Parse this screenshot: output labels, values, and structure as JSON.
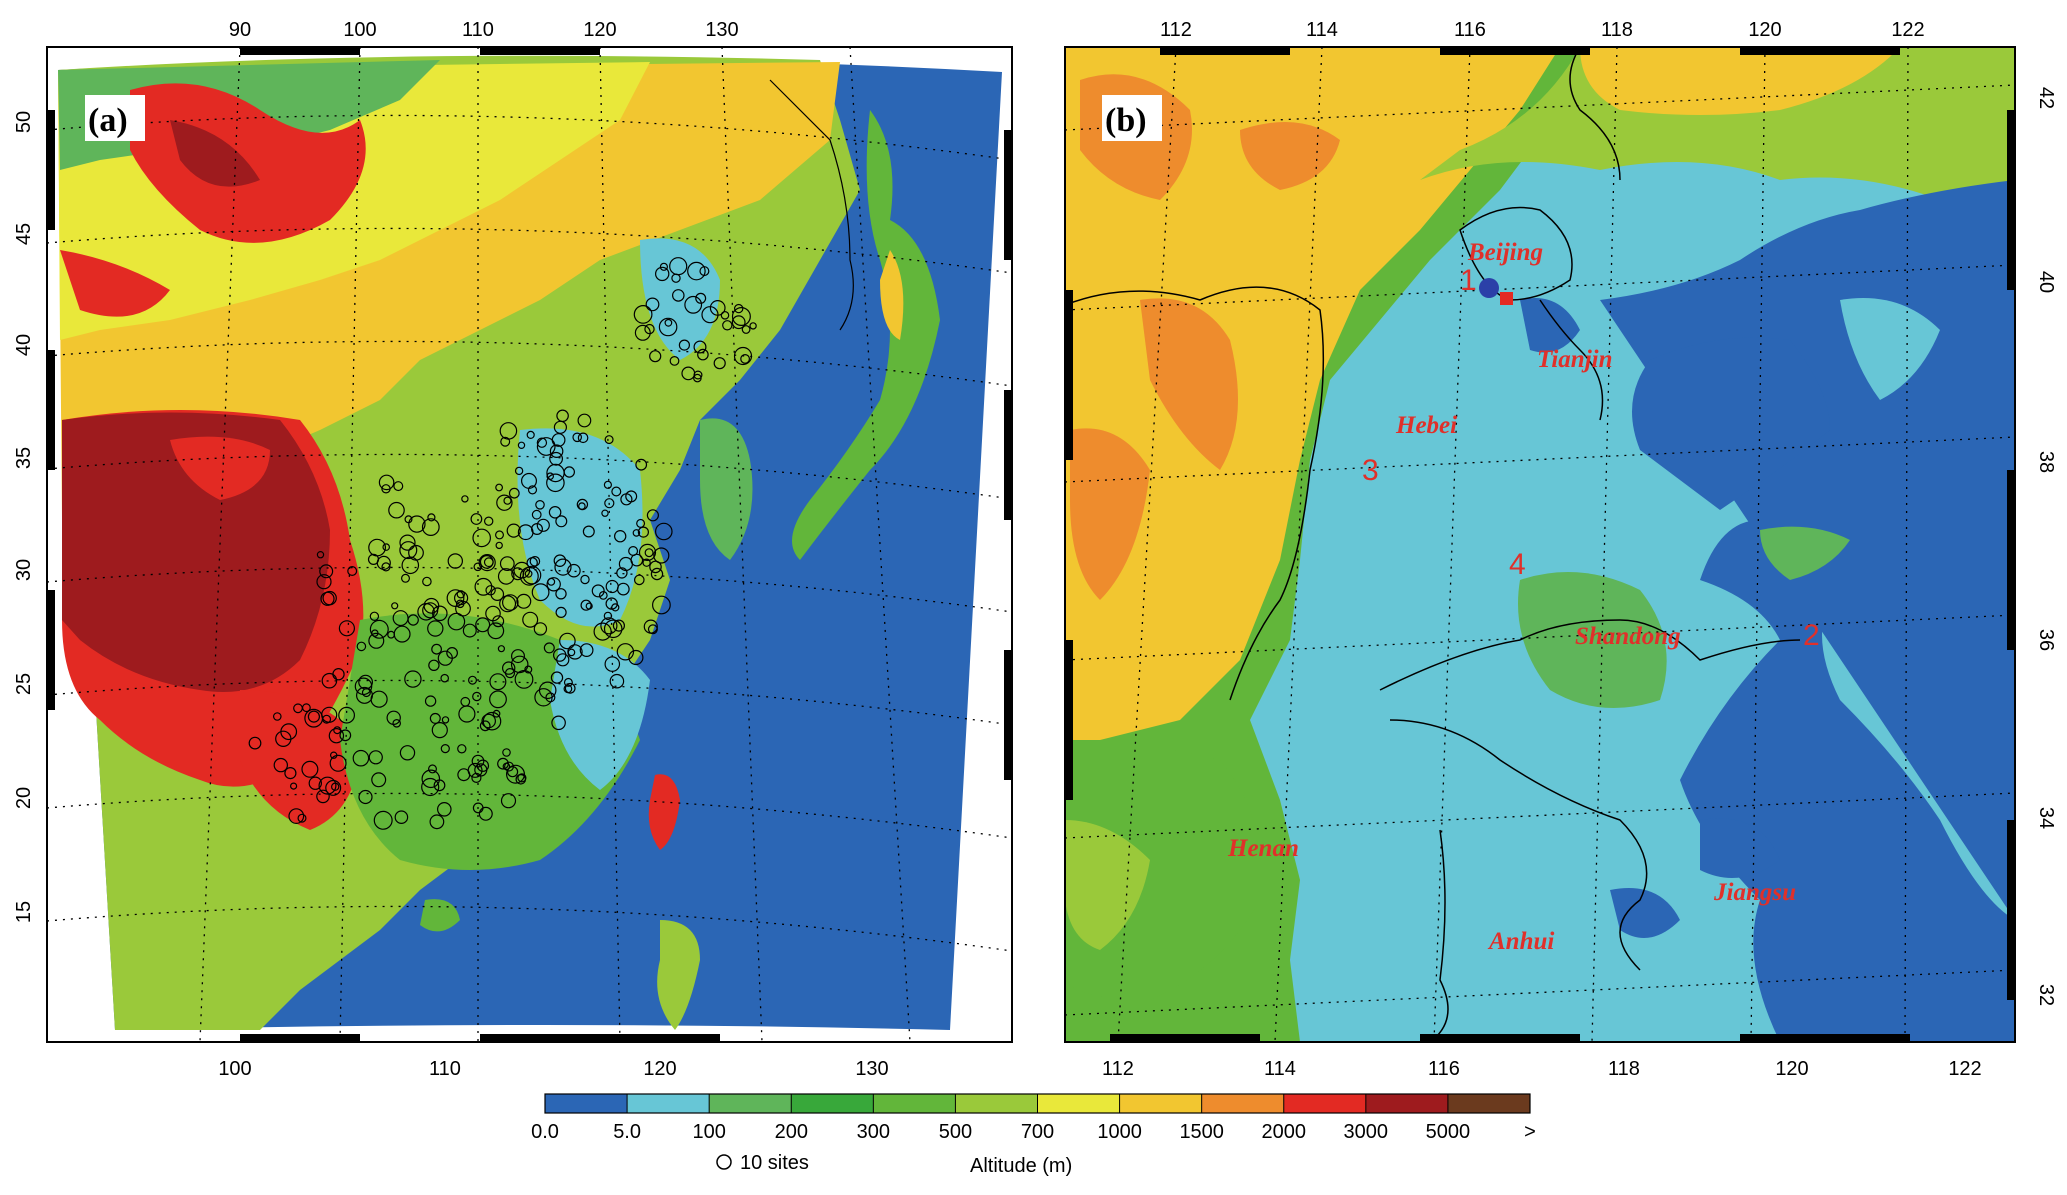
{
  "panel_a": {
    "label": "(a)",
    "top_ticks": [
      "90",
      "100",
      "110",
      "120",
      "130"
    ],
    "bottom_ticks": [
      "100",
      "110",
      "120",
      "130"
    ],
    "left_ticks": [
      "50",
      "45",
      "40",
      "35",
      "30",
      "25",
      "20",
      "15"
    ]
  },
  "panel_b": {
    "label": "(b)",
    "top_ticks": [
      "112",
      "114",
      "116",
      "118",
      "120",
      "122"
    ],
    "bottom_ticks": [
      "112",
      "114",
      "116",
      "118",
      "120",
      "122"
    ],
    "right_ticks": [
      "42",
      "40",
      "38",
      "36",
      "34",
      "32"
    ],
    "provinces": [
      "Beijing",
      "Tianjin",
      "Hebei",
      "Shandong",
      "Henan",
      "Anhui",
      "Jiangsu"
    ],
    "site_numbers": [
      "1",
      "2",
      "3",
      "4"
    ]
  },
  "colorbar": {
    "title": "Altitude (m)",
    "legend_text": "10 sites",
    "tick_labels": [
      "0.0",
      "5.0",
      "100",
      "200",
      "300",
      "500",
      "700",
      "1000",
      "1500",
      "2000",
      "3000",
      "5000",
      ">"
    ],
    "colors": [
      "#2b66b5",
      "#67c6d6",
      "#5fb55a",
      "#38a83a",
      "#62b63a",
      "#9ac93a",
      "#e9e83a",
      "#f2c630",
      "#ee8c2d",
      "#e32a23",
      "#9e1b1e",
      "#6b3a1e"
    ]
  }
}
